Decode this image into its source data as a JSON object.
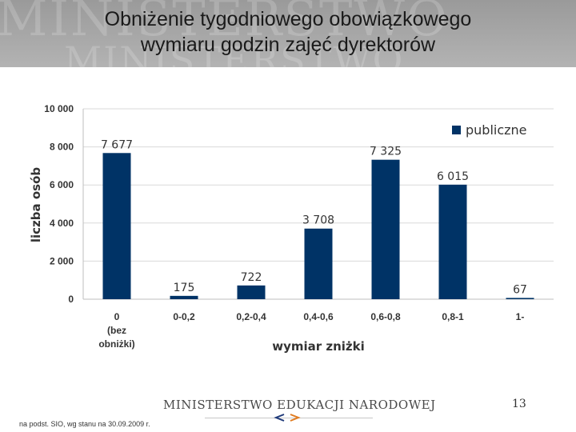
{
  "header": {
    "title_line1": "Obniżenie tygodniowego obowiązkowego",
    "title_line2": "wymiaru godzin zajęć dyrektorów",
    "watermark_line1": "MINISTERSTWO",
    "watermark_line2": "MINISTERSTWO"
  },
  "chart_data": {
    "type": "bar",
    "categories": [
      [
        "0",
        "(bez",
        "obniżki)"
      ],
      [
        "0-0,2"
      ],
      [
        "0,2-0,4"
      ],
      [
        "0,4-0,6"
      ],
      [
        "0,6-0,8"
      ],
      [
        "0,8-1"
      ],
      [
        "1-"
      ]
    ],
    "series": [
      {
        "name": "publiczne",
        "color": "#003366",
        "values": [
          7677,
          175,
          722,
          3708,
          7325,
          6015,
          67
        ]
      }
    ],
    "data_labels": [
      "7 677",
      "175",
      "722",
      "3 708",
      "7 325",
      "6 015",
      "67"
    ],
    "ylabel": "liczba osób",
    "xlabel": "wymiar zniżki",
    "ylim": [
      0,
      10000
    ],
    "yticks": [
      0,
      2000,
      4000,
      6000,
      8000,
      10000
    ],
    "ytick_labels": [
      "0",
      "2 000",
      "4 000",
      "6 000",
      "8 000",
      "10 000"
    ],
    "grid": true,
    "legend_position": "top-right"
  },
  "footer": {
    "ministry": "MINISTERSTWO EDUKACJI NARODOWEJ",
    "page_number": "13",
    "source": "na podst. SIO, wg stanu na 30.09.2009 r."
  }
}
